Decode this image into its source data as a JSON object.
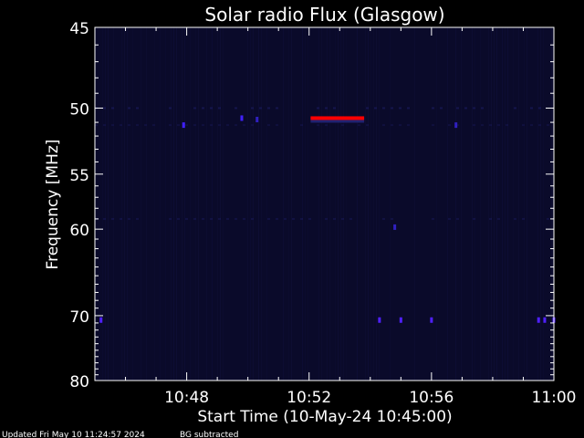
{
  "chart_data": {
    "type": "heatmap",
    "title": "Solar radio Flux (Glasgow)",
    "xlabel": "Start Time (10-May-24 10:45:00)",
    "ylabel": "Frequency [MHz]",
    "x_range_minutes_after_start": [
      0,
      15
    ],
    "x_ticks": [
      {
        "label": "10:48",
        "minutes_after_start": 3
      },
      {
        "label": "10:52",
        "minutes_after_start": 7
      },
      {
        "label": "10:56",
        "minutes_after_start": 11
      },
      {
        "label": "11:00",
        "minutes_after_start": 15
      }
    ],
    "y_scale": "reciprocal (frequency increases downward)",
    "y_range_mhz": [
      45,
      80
    ],
    "y_ticks": [
      45,
      50,
      55,
      60,
      70,
      80
    ],
    "background_color": "#000000",
    "spectrogram_color": "#0a0a2a",
    "events": [
      {
        "type": "burst",
        "color": "#ff0000",
        "start_minutes": 7.05,
        "end_minutes": 8.8,
        "frequency_mhz": 50.7
      },
      {
        "type": "dot",
        "color": "#4020ff",
        "minutes": 4.8,
        "frequency_mhz": 50.7
      },
      {
        "type": "dot",
        "color": "#4020ff",
        "minutes": 2.9,
        "frequency_mhz": 51.2
      },
      {
        "type": "dot",
        "color": "#3020c0",
        "minutes": 5.3,
        "frequency_mhz": 50.8
      },
      {
        "type": "dot",
        "color": "#3020c0",
        "minutes": 11.8,
        "frequency_mhz": 51.2
      },
      {
        "type": "dot",
        "color": "#3020c0",
        "minutes": 9.8,
        "frequency_mhz": 59.8
      },
      {
        "type": "dot",
        "color": "#5020ff",
        "minutes": 0.2,
        "frequency_mhz": 70.6
      },
      {
        "type": "dot",
        "color": "#5020ff",
        "minutes": 9.3,
        "frequency_mhz": 70.6
      },
      {
        "type": "dot",
        "color": "#5020ff",
        "minutes": 10.0,
        "frequency_mhz": 70.6
      },
      {
        "type": "dot",
        "color": "#5020ff",
        "minutes": 11.0,
        "frequency_mhz": 70.6
      },
      {
        "type": "dot",
        "color": "#5020ff",
        "minutes": 14.5,
        "frequency_mhz": 70.6
      },
      {
        "type": "dot",
        "color": "#5020ff",
        "minutes": 14.7,
        "frequency_mhz": 70.6
      },
      {
        "type": "dot",
        "color": "#5020ff",
        "minutes": 15.0,
        "frequency_mhz": 70.6
      }
    ]
  },
  "footer": {
    "updated": "Updated Fri May 10 11:24:57 2024",
    "note": "BG subtracted"
  }
}
